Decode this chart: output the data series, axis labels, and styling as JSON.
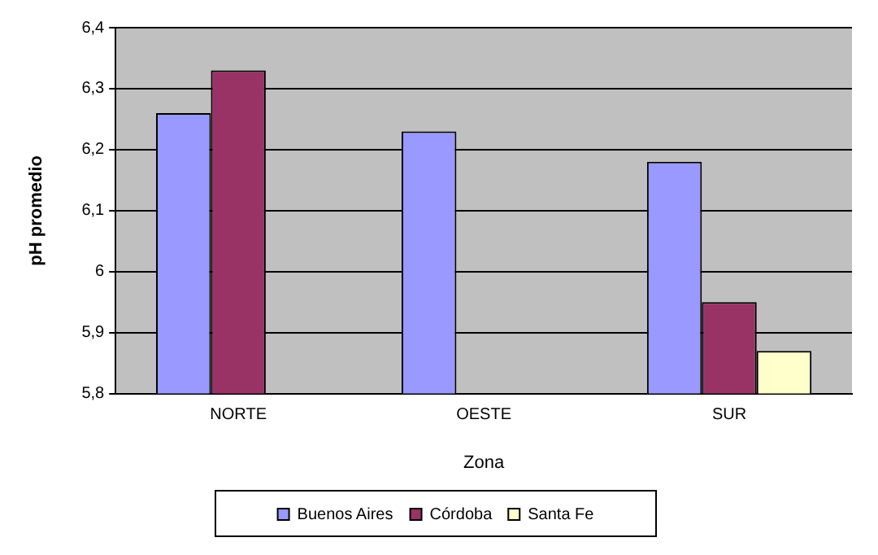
{
  "chart_data": {
    "type": "bar",
    "xlabel": "Zona",
    "ylabel": "pH promedio",
    "categories": [
      "NORTE",
      "OESTE",
      "SUR"
    ],
    "series": [
      {
        "name": "Buenos Aires",
        "color": "#9999ff",
        "values": [
          6.26,
          6.23,
          6.18
        ]
      },
      {
        "name": "Córdoba",
        "color": "#993366",
        "values": [
          6.33,
          null,
          5.95
        ]
      },
      {
        "name": "Santa Fe",
        "color": "#ffffcc",
        "values": [
          null,
          null,
          5.87
        ]
      }
    ],
    "ylim": [
      5.8,
      6.4
    ],
    "yticks": [
      {
        "value": 5.8,
        "label": "5,8"
      },
      {
        "value": 5.9,
        "label": "5,9"
      },
      6,
      {
        "value": 6.1,
        "label": "6,1"
      },
      {
        "value": 6.2,
        "label": "6,2"
      },
      {
        "value": 6.3,
        "label": "6,3"
      },
      {
        "value": 6.4,
        "label": "6,4"
      }
    ],
    "grid": "y",
    "legend": "bottom"
  }
}
